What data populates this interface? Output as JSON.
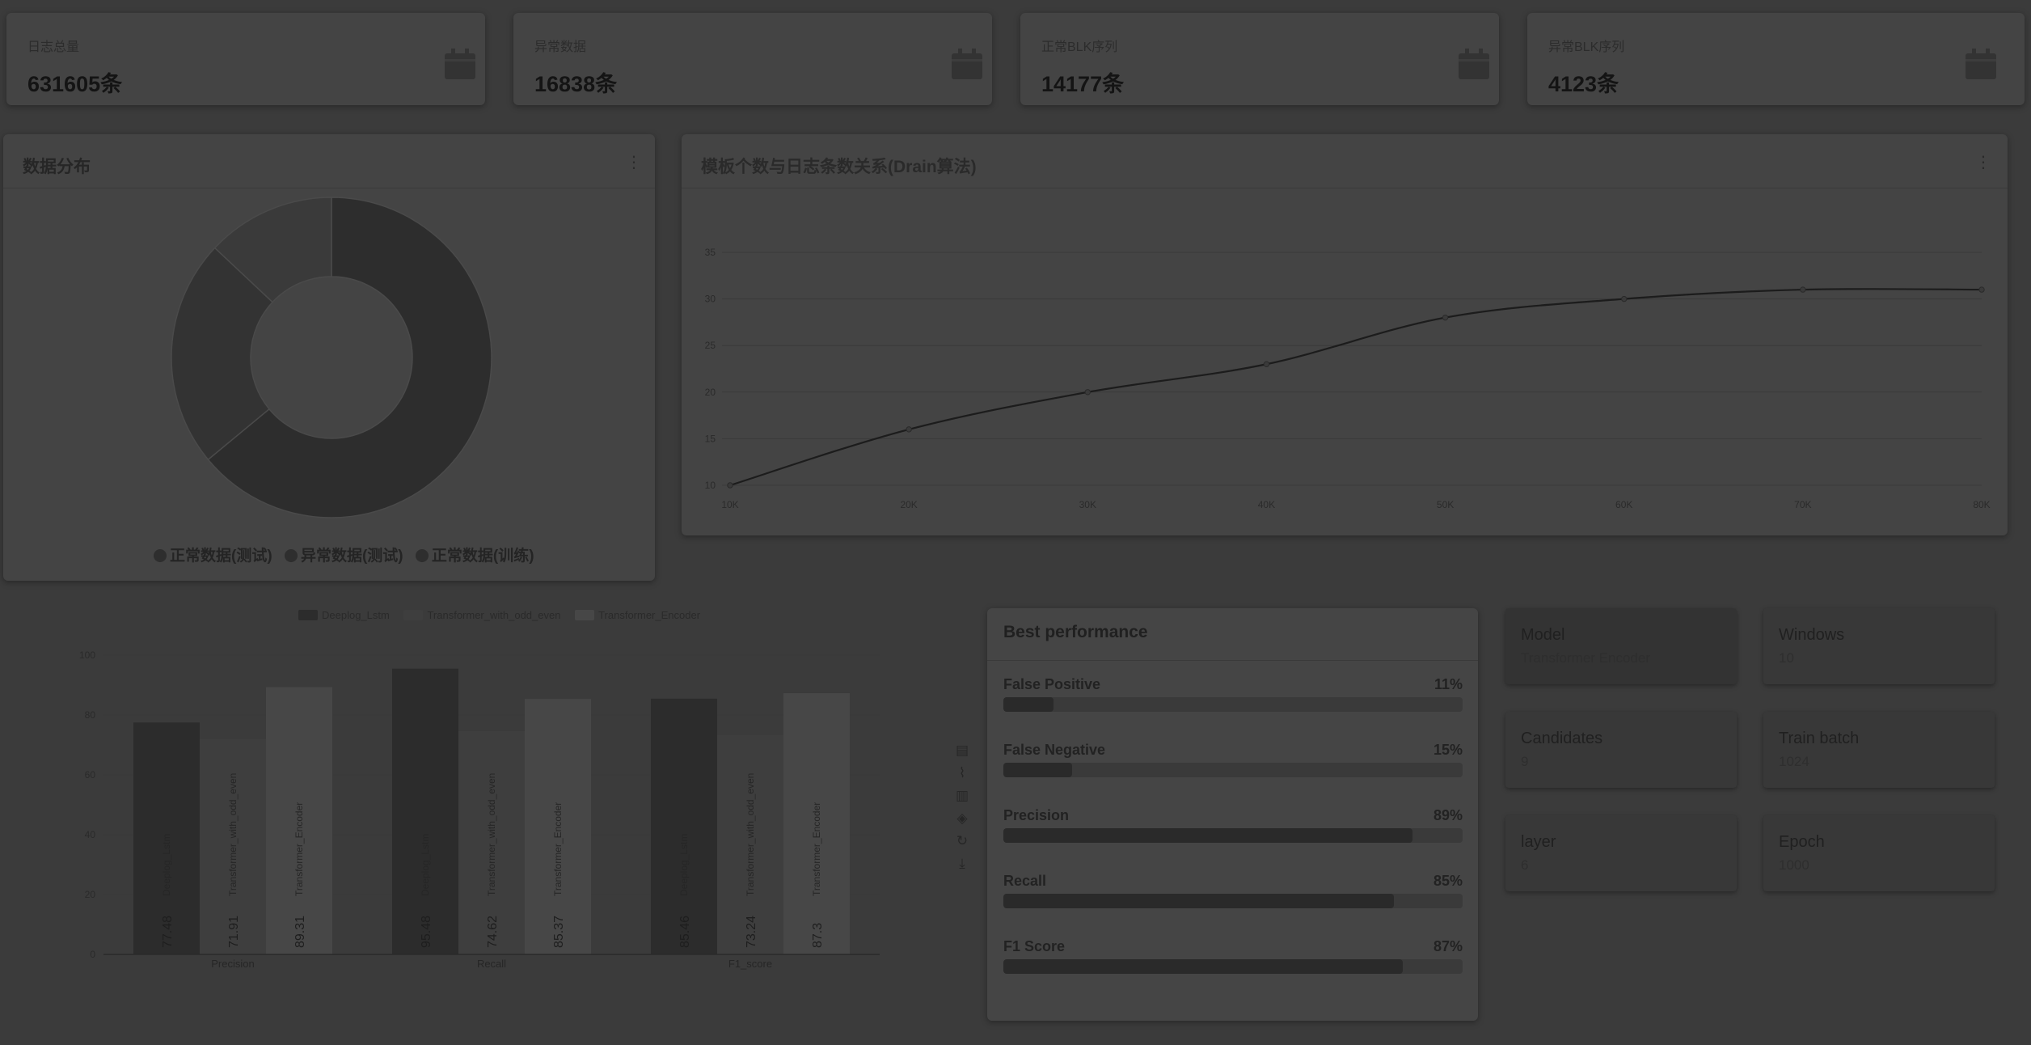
{
  "stats": [
    {
      "label": "日志总量",
      "value": "631605条"
    },
    {
      "label": "异常数据",
      "value": "16838条"
    },
    {
      "label": "正常BLK序列",
      "value": "14177条"
    },
    {
      "label": "异常BLK序列",
      "value": "4123条"
    }
  ],
  "donut": {
    "title": "数据分布",
    "legend": [
      "正常数据(测试)",
      "异常数据(测试)",
      "正常数据(训练)"
    ],
    "chart_data": {
      "type": "pie",
      "title": "数据分布",
      "labels": [
        "正常数据(测试)",
        "异常数据(测试)",
        "正常数据(训练)"
      ],
      "values": [
        64,
        23,
        13
      ],
      "colors": [
        "#2d2d2d",
        "#333333",
        "#3a3a3a"
      ]
    }
  },
  "line": {
    "title": "模板个数与日志条数关系(Drain算法)",
    "chart_data": {
      "type": "line",
      "title": "模板个数与日志条数关系(Drain算法)",
      "x": [
        "10K",
        "20K",
        "30K",
        "40K",
        "50K",
        "60K",
        "70K",
        "80K"
      ],
      "y": [
        10,
        16,
        20,
        23,
        28,
        30,
        31,
        31
      ],
      "yticks": [
        10,
        15,
        20,
        25,
        30,
        35
      ],
      "ylim": [
        10,
        35
      ]
    }
  },
  "bar": {
    "chart_data": {
      "type": "bar",
      "categories": [
        "Precision",
        "Recall",
        "F1_score"
      ],
      "series": [
        {
          "name": "Deeplog_Lstm",
          "values": [
            77.48,
            95.48,
            85.46
          ],
          "color": "#2c2c2c"
        },
        {
          "name": "Transformer_with_odd_even",
          "values": [
            71.91,
            74.62,
            73.24
          ],
          "color": "#3e3e3e"
        },
        {
          "name": "Transformer_Encoder",
          "values": [
            89.31,
            85.37,
            87.3
          ],
          "color": "#474747"
        }
      ],
      "yticks": [
        0,
        20,
        40,
        60,
        80,
        100
      ],
      "ylim": [
        0,
        100
      ]
    }
  },
  "performance": {
    "title": "Best performance",
    "metrics": [
      {
        "name": "False Positive",
        "value": "11%",
        "fraction": 0.11
      },
      {
        "name": "False Negative",
        "value": "15%",
        "fraction": 0.15
      },
      {
        "name": "Precision",
        "value": "89%",
        "fraction": 0.89
      },
      {
        "name": "Recall",
        "value": "85%",
        "fraction": 0.85
      },
      {
        "name": "F1 Score",
        "value": "87%",
        "fraction": 0.87
      }
    ]
  },
  "params": [
    {
      "title": "Model",
      "value": "Transformer Encoder"
    },
    {
      "title": "Windows",
      "value": "10"
    },
    {
      "title": "Candidates",
      "value": "9"
    },
    {
      "title": "Train batch",
      "value": "1024"
    },
    {
      "title": "layer",
      "value": "6"
    },
    {
      "title": "Epoch",
      "value": "1000"
    }
  ],
  "toolbox_icons": [
    "data-view-icon",
    "line-chart-icon",
    "bar-chart-icon",
    "stack-icon",
    "restore-icon",
    "download-icon"
  ]
}
